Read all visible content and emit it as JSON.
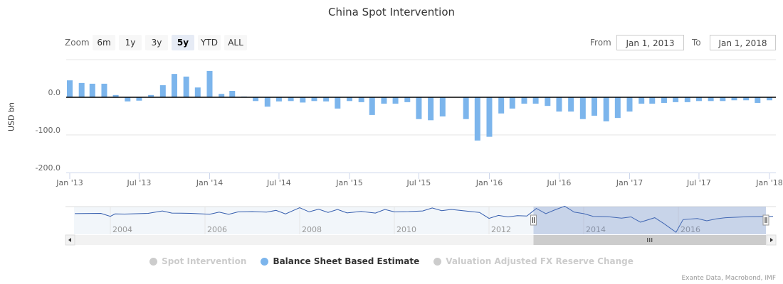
{
  "chart_data": {
    "type": "bar",
    "title": "China Spot Intervention",
    "ylabel": "USD bn",
    "ylim": [
      -200,
      100
    ],
    "yticks": [
      {
        "value": 0,
        "label": "0.0"
      },
      {
        "value": -100,
        "label": "-100.0"
      },
      {
        "value": -200,
        "label": "-200.0"
      }
    ],
    "xlim": [
      "2013-01-01",
      "2018-01-01"
    ],
    "xticks": [
      {
        "date": "2013-01-01",
        "label": "Jan '13"
      },
      {
        "date": "2013-07-01",
        "label": "Jul '13"
      },
      {
        "date": "2014-01-01",
        "label": "Jan '14"
      },
      {
        "date": "2014-07-01",
        "label": "Jul '14"
      },
      {
        "date": "2015-01-01",
        "label": "Jan '15"
      },
      {
        "date": "2015-07-01",
        "label": "Jul '15"
      },
      {
        "date": "2016-01-01",
        "label": "Jan '16"
      },
      {
        "date": "2016-07-01",
        "label": "Jul '16"
      },
      {
        "date": "2017-01-01",
        "label": "Jan '17"
      },
      {
        "date": "2017-07-01",
        "label": "Jul '17"
      },
      {
        "date": "2018-01-01",
        "label": "Jan '18"
      }
    ],
    "grid": true,
    "series": [
      {
        "name": "Balance Sheet Based Estimate",
        "color": "#7cb5ec",
        "visible": true,
        "x": [
          "2013-01",
          "2013-02",
          "2013-03",
          "2013-04",
          "2013-05",
          "2013-06",
          "2013-07",
          "2013-08",
          "2013-09",
          "2013-10",
          "2013-11",
          "2013-12",
          "2014-01",
          "2014-02",
          "2014-03",
          "2014-04",
          "2014-05",
          "2014-06",
          "2014-07",
          "2014-08",
          "2014-09",
          "2014-10",
          "2014-11",
          "2014-12",
          "2015-01",
          "2015-02",
          "2015-03",
          "2015-04",
          "2015-05",
          "2015-06",
          "2015-07",
          "2015-08",
          "2015-09",
          "2015-11",
          "2015-12",
          "2016-01",
          "2016-02",
          "2016-03",
          "2016-04",
          "2016-05",
          "2016-06",
          "2016-07",
          "2016-08",
          "2016-09",
          "2016-10",
          "2016-11",
          "2016-12",
          "2017-01",
          "2017-02",
          "2017-03",
          "2017-04",
          "2017-05",
          "2017-06",
          "2017-07",
          "2017-08",
          "2017-09",
          "2017-10",
          "2017-11",
          "2017-12",
          "2018-01"
        ],
        "values": [
          45,
          38,
          36,
          36,
          6,
          -11,
          -9,
          6,
          32,
          62,
          55,
          26,
          70,
          9,
          17,
          2,
          -10,
          -25,
          -11,
          -10,
          -14,
          -10,
          -11,
          -30,
          -10,
          -13,
          -47,
          -17,
          -17,
          -13,
          -58,
          -61,
          -51,
          -58,
          -115,
          -105,
          -43,
          -30,
          -17,
          -17,
          -23,
          -38,
          -38,
          -58,
          -49,
          -64,
          -55,
          -38,
          -17,
          -17,
          -15,
          -13,
          -13,
          -10,
          -10,
          -10,
          -8,
          -8,
          -15,
          -8
        ]
      },
      {
        "name": "Spot Intervention",
        "color": "#cccccc",
        "visible": false
      },
      {
        "name": "Valuation Adjusted FX Reserve Change",
        "color": "#cccccc",
        "visible": false
      }
    ],
    "legend": "bottom-center",
    "navigator": {
      "xticks": [
        "2004",
        "2006",
        "2008",
        "2010",
        "2012",
        "2014",
        "2016"
      ],
      "range": [
        2003.25,
        2018.0
      ],
      "selected": [
        "2013-01-01",
        "2018-01-01"
      ],
      "x": [
        2003.25,
        2003.8,
        2004.0,
        2004.1,
        2004.3,
        2004.8,
        2005.1,
        2005.3,
        2005.7,
        2006.1,
        2006.3,
        2006.5,
        2006.7,
        2007.0,
        2007.3,
        2007.5,
        2007.7,
        2007.9,
        2008.0,
        2008.2,
        2008.4,
        2008.6,
        2008.8,
        2009.0,
        2009.3,
        2009.6,
        2009.8,
        2010.0,
        2010.3,
        2010.6,
        2010.8,
        2011.0,
        2011.2,
        2011.5,
        2011.8,
        2012.0,
        2012.2,
        2012.4,
        2012.6,
        2012.8,
        2013.0,
        2013.2,
        2013.4,
        2013.6,
        2013.8,
        2014.0,
        2014.2,
        2014.5,
        2014.8,
        2015.0,
        2015.2,
        2015.5,
        2015.7,
        2015.95,
        2016.1,
        2016.4,
        2016.6,
        2016.8,
        2017.0,
        2017.5,
        2018.0
      ],
      "values": [
        10,
        12,
        -8,
        8,
        7,
        12,
        28,
        14,
        12,
        6,
        20,
        5,
        22,
        24,
        20,
        32,
        8,
        36,
        50,
        22,
        40,
        18,
        38,
        15,
        25,
        14,
        38,
        22,
        24,
        28,
        48,
        30,
        38,
        28,
        18,
        -22,
        -2,
        -12,
        -4,
        -6,
        45,
        10,
        36,
        60,
        20,
        10,
        -8,
        -10,
        -20,
        -12,
        -47,
        -17,
        -58,
        -115,
        -30,
        -23,
        -38,
        -25,
        -17,
        -10,
        -8
      ]
    }
  },
  "toolbar": {
    "zoom_label": "Zoom",
    "buttons": [
      "6m",
      "1y",
      "3y",
      "5y",
      "YTD",
      "ALL"
    ],
    "active": "5y",
    "from_label": "From",
    "from_value": "Jan 1, 2013",
    "to_label": "To",
    "to_value": "Jan 1, 2018"
  },
  "credits": "Exante Data, Macrobond, IMF"
}
